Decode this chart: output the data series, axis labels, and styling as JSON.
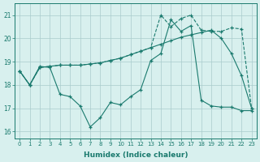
{
  "xlabel": "Humidex (Indice chaleur)",
  "bg_color": "#d8f0ee",
  "grid_color": "#aacccc",
  "line_color": "#1a7a6e",
  "xlim_min": -0.5,
  "xlim_max": 23.5,
  "ylim_min": 15.7,
  "ylim_max": 21.5,
  "yticks": [
    16,
    17,
    18,
    19,
    20,
    21
  ],
  "xticks": [
    0,
    1,
    2,
    3,
    4,
    5,
    6,
    7,
    8,
    9,
    10,
    11,
    12,
    13,
    14,
    15,
    16,
    17,
    18,
    19,
    20,
    21,
    22,
    23
  ],
  "line1_x": [
    0,
    1,
    2,
    3,
    4,
    5,
    6,
    7,
    8,
    9,
    10,
    11,
    12,
    13,
    14,
    15,
    16,
    17,
    18,
    19,
    20,
    21,
    22,
    23
  ],
  "line1_y": [
    18.6,
    18.0,
    18.8,
    18.75,
    17.6,
    17.5,
    17.1,
    16.2,
    16.6,
    17.25,
    17.15,
    17.5,
    17.8,
    19.05,
    19.35,
    20.8,
    20.3,
    20.55,
    17.35,
    17.1,
    17.05,
    17.05,
    16.9,
    16.9
  ],
  "line1_style": "-",
  "line2_x": [
    0,
    1,
    2,
    3,
    4,
    5,
    6,
    7,
    8,
    9,
    10,
    11,
    12,
    13,
    14,
    15,
    16,
    17,
    18,
    19,
    20,
    21,
    22,
    23
  ],
  "line2_y": [
    18.6,
    18.0,
    18.75,
    18.8,
    18.85,
    18.85,
    18.85,
    18.9,
    18.95,
    19.05,
    19.15,
    19.3,
    19.45,
    19.6,
    19.75,
    19.9,
    20.05,
    20.15,
    20.25,
    20.35,
    20.0,
    19.35,
    18.4,
    17.0
  ],
  "line2_style": "-",
  "line3_x": [
    0,
    1,
    2,
    3,
    4,
    5,
    6,
    7,
    8,
    9,
    10,
    11,
    12,
    13,
    14,
    15,
    16,
    17,
    18,
    19,
    20,
    21,
    22,
    23
  ],
  "line3_y": [
    18.6,
    18.0,
    18.75,
    18.8,
    18.85,
    18.85,
    18.85,
    18.9,
    18.95,
    19.05,
    19.15,
    19.3,
    19.45,
    19.6,
    21.0,
    20.5,
    20.85,
    21.0,
    20.35,
    20.3,
    20.3,
    20.45,
    20.4,
    17.0
  ],
  "line3_style": "--"
}
